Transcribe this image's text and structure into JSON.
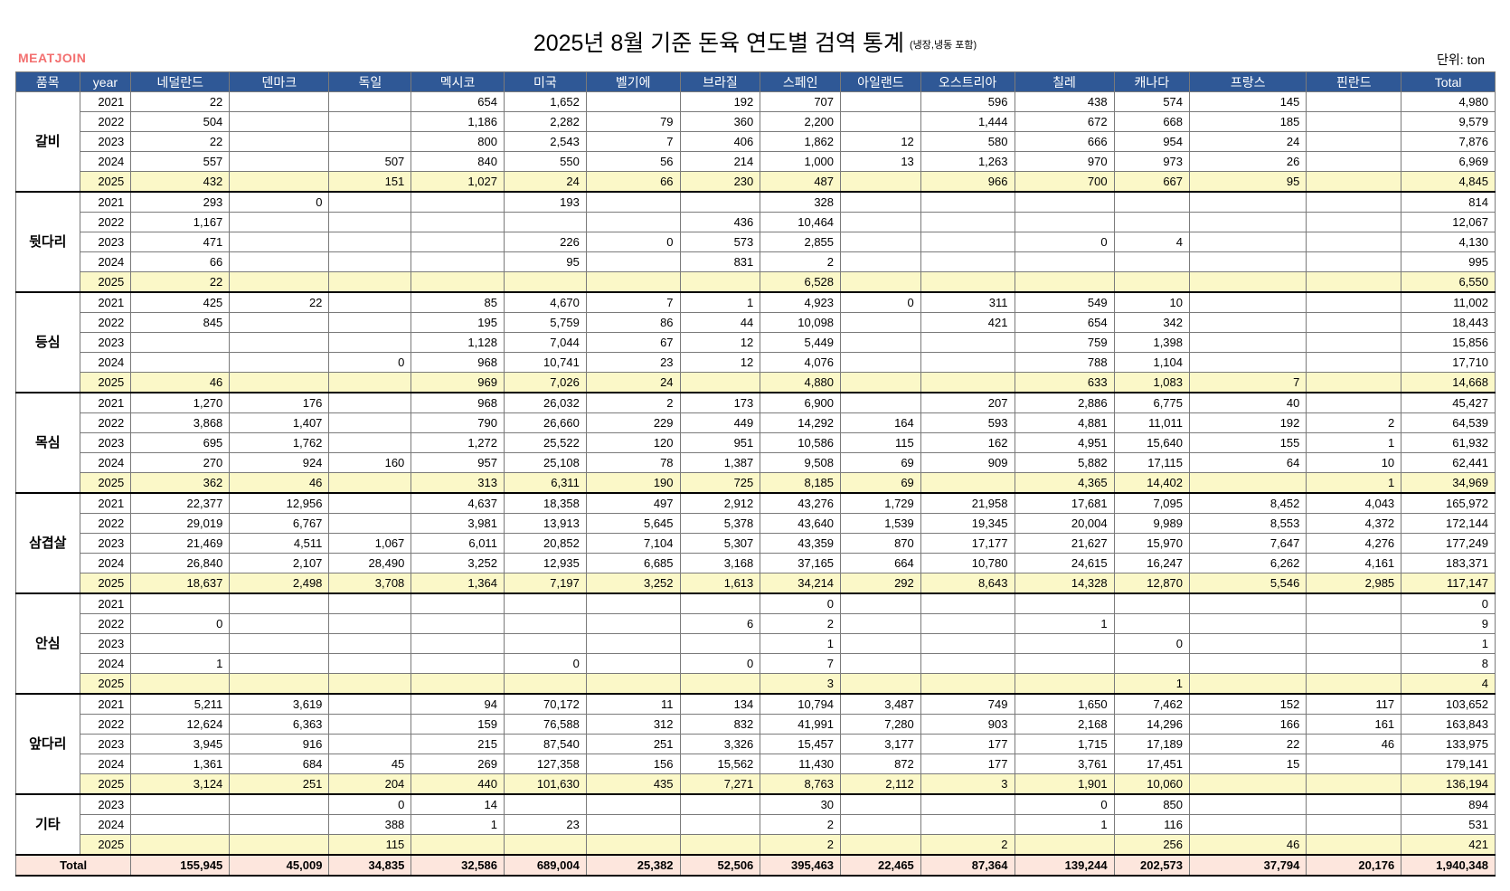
{
  "title": "2025년 8월 기준 돈육 연도별 검역 통계",
  "subtitle": "(냉장,냉동 포함)",
  "logo": "MEATJOIN",
  "unit": "단위: ton",
  "table": {
    "headers": [
      "품목",
      "year",
      "네덜란드",
      "덴마크",
      "독일",
      "멕시코",
      "미국",
      "벨기에",
      "브라질",
      "스페인",
      "아일랜드",
      "오스트리아",
      "칠레",
      "캐나다",
      "프랑스",
      "핀란드",
      "Total"
    ],
    "groups": [
      {
        "item": "갈비",
        "rows": [
          {
            "year": "2021",
            "values": [
              "22",
              "",
              "",
              "654",
              "1,652",
              "",
              "192",
              "707",
              "",
              "596",
              "438",
              "574",
              "145",
              "",
              "4,980"
            ]
          },
          {
            "year": "2022",
            "values": [
              "504",
              "",
              "",
              "1,186",
              "2,282",
              "79",
              "360",
              "2,200",
              "",
              "1,444",
              "672",
              "668",
              "185",
              "",
              "9,579"
            ]
          },
          {
            "year": "2023",
            "values": [
              "22",
              "",
              "",
              "800",
              "2,543",
              "7",
              "406",
              "1,862",
              "12",
              "580",
              "666",
              "954",
              "24",
              "",
              "7,876"
            ]
          },
          {
            "year": "2024",
            "values": [
              "557",
              "",
              "507",
              "840",
              "550",
              "56",
              "214",
              "1,000",
              "13",
              "1,263",
              "970",
              "973",
              "26",
              "",
              "6,969"
            ]
          },
          {
            "year": "2025",
            "values": [
              "432",
              "",
              "151",
              "1,027",
              "24",
              "66",
              "230",
              "487",
              "",
              "966",
              "700",
              "667",
              "95",
              "",
              "4,845"
            ]
          }
        ]
      },
      {
        "item": "뒷다리",
        "rows": [
          {
            "year": "2021",
            "values": [
              "293",
              "0",
              "",
              "",
              "193",
              "",
              "",
              "328",
              "",
              "",
              "",
              "",
              "",
              "",
              "814"
            ]
          },
          {
            "year": "2022",
            "values": [
              "1,167",
              "",
              "",
              "",
              "",
              "",
              "436",
              "10,464",
              "",
              "",
              "",
              "",
              "",
              "",
              "12,067"
            ]
          },
          {
            "year": "2023",
            "values": [
              "471",
              "",
              "",
              "",
              "226",
              "0",
              "573",
              "2,855",
              "",
              "",
              "0",
              "4",
              "",
              "",
              "4,130"
            ]
          },
          {
            "year": "2024",
            "values": [
              "66",
              "",
              "",
              "",
              "95",
              "",
              "831",
              "2",
              "",
              "",
              "",
              "",
              "",
              "",
              "995"
            ]
          },
          {
            "year": "2025",
            "values": [
              "22",
              "",
              "",
              "",
              "",
              "",
              "",
              "6,528",
              "",
              "",
              "",
              "",
              "",
              "",
              "6,550"
            ]
          }
        ]
      },
      {
        "item": "등심",
        "rows": [
          {
            "year": "2021",
            "values": [
              "425",
              "22",
              "",
              "85",
              "4,670",
              "7",
              "1",
              "4,923",
              "0",
              "311",
              "549",
              "10",
              "",
              "",
              "11,002"
            ]
          },
          {
            "year": "2022",
            "values": [
              "845",
              "",
              "",
              "195",
              "5,759",
              "86",
              "44",
              "10,098",
              "",
              "421",
              "654",
              "342",
              "",
              "",
              "18,443"
            ]
          },
          {
            "year": "2023",
            "values": [
              "",
              "",
              "",
              "1,128",
              "7,044",
              "67",
              "12",
              "5,449",
              "",
              "",
              "759",
              "1,398",
              "",
              "",
              "15,856"
            ]
          },
          {
            "year": "2024",
            "values": [
              "",
              "",
              "0",
              "968",
              "10,741",
              "23",
              "12",
              "4,076",
              "",
              "",
              "788",
              "1,104",
              "",
              "",
              "17,710"
            ]
          },
          {
            "year": "2025",
            "values": [
              "46",
              "",
              "",
              "969",
              "7,026",
              "24",
              "",
              "4,880",
              "",
              "",
              "633",
              "1,083",
              "7",
              "",
              "14,668"
            ]
          }
        ]
      },
      {
        "item": "목심",
        "rows": [
          {
            "year": "2021",
            "values": [
              "1,270",
              "176",
              "",
              "968",
              "26,032",
              "2",
              "173",
              "6,900",
              "",
              "207",
              "2,886",
              "6,775",
              "40",
              "",
              "45,427"
            ]
          },
          {
            "year": "2022",
            "values": [
              "3,868",
              "1,407",
              "",
              "790",
              "26,660",
              "229",
              "449",
              "14,292",
              "164",
              "593",
              "4,881",
              "11,011",
              "192",
              "2",
              "64,539"
            ]
          },
          {
            "year": "2023",
            "values": [
              "695",
              "1,762",
              "",
              "1,272",
              "25,522",
              "120",
              "951",
              "10,586",
              "115",
              "162",
              "4,951",
              "15,640",
              "155",
              "1",
              "61,932"
            ]
          },
          {
            "year": "2024",
            "values": [
              "270",
              "924",
              "160",
              "957",
              "25,108",
              "78",
              "1,387",
              "9,508",
              "69",
              "909",
              "5,882",
              "17,115",
              "64",
              "10",
              "62,441"
            ]
          },
          {
            "year": "2025",
            "values": [
              "362",
              "46",
              "",
              "313",
              "6,311",
              "190",
              "725",
              "8,185",
              "69",
              "",
              "4,365",
              "14,402",
              "",
              "1",
              "34,969"
            ]
          }
        ]
      },
      {
        "item": "삼겹살",
        "rows": [
          {
            "year": "2021",
            "values": [
              "22,377",
              "12,956",
              "",
              "4,637",
              "18,358",
              "497",
              "2,912",
              "43,276",
              "1,729",
              "21,958",
              "17,681",
              "7,095",
              "8,452",
              "4,043",
              "165,972"
            ]
          },
          {
            "year": "2022",
            "values": [
              "29,019",
              "6,767",
              "",
              "3,981",
              "13,913",
              "5,645",
              "5,378",
              "43,640",
              "1,539",
              "19,345",
              "20,004",
              "9,989",
              "8,553",
              "4,372",
              "172,144"
            ]
          },
          {
            "year": "2023",
            "values": [
              "21,469",
              "4,511",
              "1,067",
              "6,011",
              "20,852",
              "7,104",
              "5,307",
              "43,359",
              "870",
              "17,177",
              "21,627",
              "15,970",
              "7,647",
              "4,276",
              "177,249"
            ]
          },
          {
            "year": "2024",
            "values": [
              "26,840",
              "2,107",
              "28,490",
              "3,252",
              "12,935",
              "6,685",
              "3,168",
              "37,165",
              "664",
              "10,780",
              "24,615",
              "16,247",
              "6,262",
              "4,161",
              "183,371"
            ]
          },
          {
            "year": "2025",
            "values": [
              "18,637",
              "2,498",
              "3,708",
              "1,364",
              "7,197",
              "3,252",
              "1,613",
              "34,214",
              "292",
              "8,643",
              "14,328",
              "12,870",
              "5,546",
              "2,985",
              "117,147"
            ]
          }
        ]
      },
      {
        "item": "안심",
        "rows": [
          {
            "year": "2021",
            "values": [
              "",
              "",
              "",
              "",
              "",
              "",
              "",
              "0",
              "",
              "",
              "",
              "",
              "",
              "",
              "0"
            ]
          },
          {
            "year": "2022",
            "values": [
              "0",
              "",
              "",
              "",
              "",
              "",
              "6",
              "2",
              "",
              "",
              "1",
              "",
              "",
              "",
              "9"
            ]
          },
          {
            "year": "2023",
            "values": [
              "",
              "",
              "",
              "",
              "",
              "",
              "",
              "1",
              "",
              "",
              "",
              "0",
              "",
              "",
              "1"
            ]
          },
          {
            "year": "2024",
            "values": [
              "1",
              "",
              "",
              "",
              "0",
              "",
              "0",
              "7",
              "",
              "",
              "",
              "",
              "",
              "",
              "8"
            ]
          },
          {
            "year": "2025",
            "values": [
              "",
              "",
              "",
              "",
              "",
              "",
              "",
              "3",
              "",
              "",
              "",
              "1",
              "",
              "",
              "4"
            ]
          }
        ]
      },
      {
        "item": "앞다리",
        "rows": [
          {
            "year": "2021",
            "values": [
              "5,211",
              "3,619",
              "",
              "94",
              "70,172",
              "11",
              "134",
              "10,794",
              "3,487",
              "749",
              "1,650",
              "7,462",
              "152",
              "117",
              "103,652"
            ]
          },
          {
            "year": "2022",
            "values": [
              "12,624",
              "6,363",
              "",
              "159",
              "76,588",
              "312",
              "832",
              "41,991",
              "7,280",
              "903",
              "2,168",
              "14,296",
              "166",
              "161",
              "163,843"
            ]
          },
          {
            "year": "2023",
            "values": [
              "3,945",
              "916",
              "",
              "215",
              "87,540",
              "251",
              "3,326",
              "15,457",
              "3,177",
              "177",
              "1,715",
              "17,189",
              "22",
              "46",
              "133,975"
            ]
          },
          {
            "year": "2024",
            "values": [
              "1,361",
              "684",
              "45",
              "269",
              "127,358",
              "156",
              "15,562",
              "11,430",
              "872",
              "177",
              "3,761",
              "17,451",
              "15",
              "",
              "179,141"
            ]
          },
          {
            "year": "2025",
            "values": [
              "3,124",
              "251",
              "204",
              "440",
              "101,630",
              "435",
              "7,271",
              "8,763",
              "2,112",
              "3",
              "1,901",
              "10,060",
              "",
              "",
              "136,194"
            ]
          }
        ]
      },
      {
        "item": "기타",
        "rows": [
          {
            "year": "2023",
            "values": [
              "",
              "",
              "0",
              "14",
              "",
              "",
              "",
              "30",
              "",
              "",
              "0",
              "850",
              "",
              "",
              "894"
            ]
          },
          {
            "year": "2024",
            "values": [
              "",
              "",
              "388",
              "1",
              "23",
              "",
              "",
              "2",
              "",
              "",
              "1",
              "116",
              "",
              "",
              "531"
            ]
          },
          {
            "year": "2025",
            "values": [
              "",
              "",
              "115",
              "",
              "",
              "",
              "",
              "2",
              "",
              "2",
              "",
              "256",
              "46",
              "",
              "421"
            ]
          }
        ]
      }
    ],
    "total": {
      "label": "Total",
      "values": [
        "155,945",
        "45,009",
        "34,835",
        "32,586",
        "689,004",
        "25,382",
        "52,506",
        "395,463",
        "22,465",
        "87,364",
        "139,244",
        "202,573",
        "37,794",
        "20,176",
        "1,940,348"
      ]
    },
    "highlight_year": "2025"
  },
  "colors": {
    "header_bg": "#2f5896",
    "highlight_row": "#fbf8c8",
    "total_row": "#fde6dd",
    "logo": "#f36f6f"
  }
}
